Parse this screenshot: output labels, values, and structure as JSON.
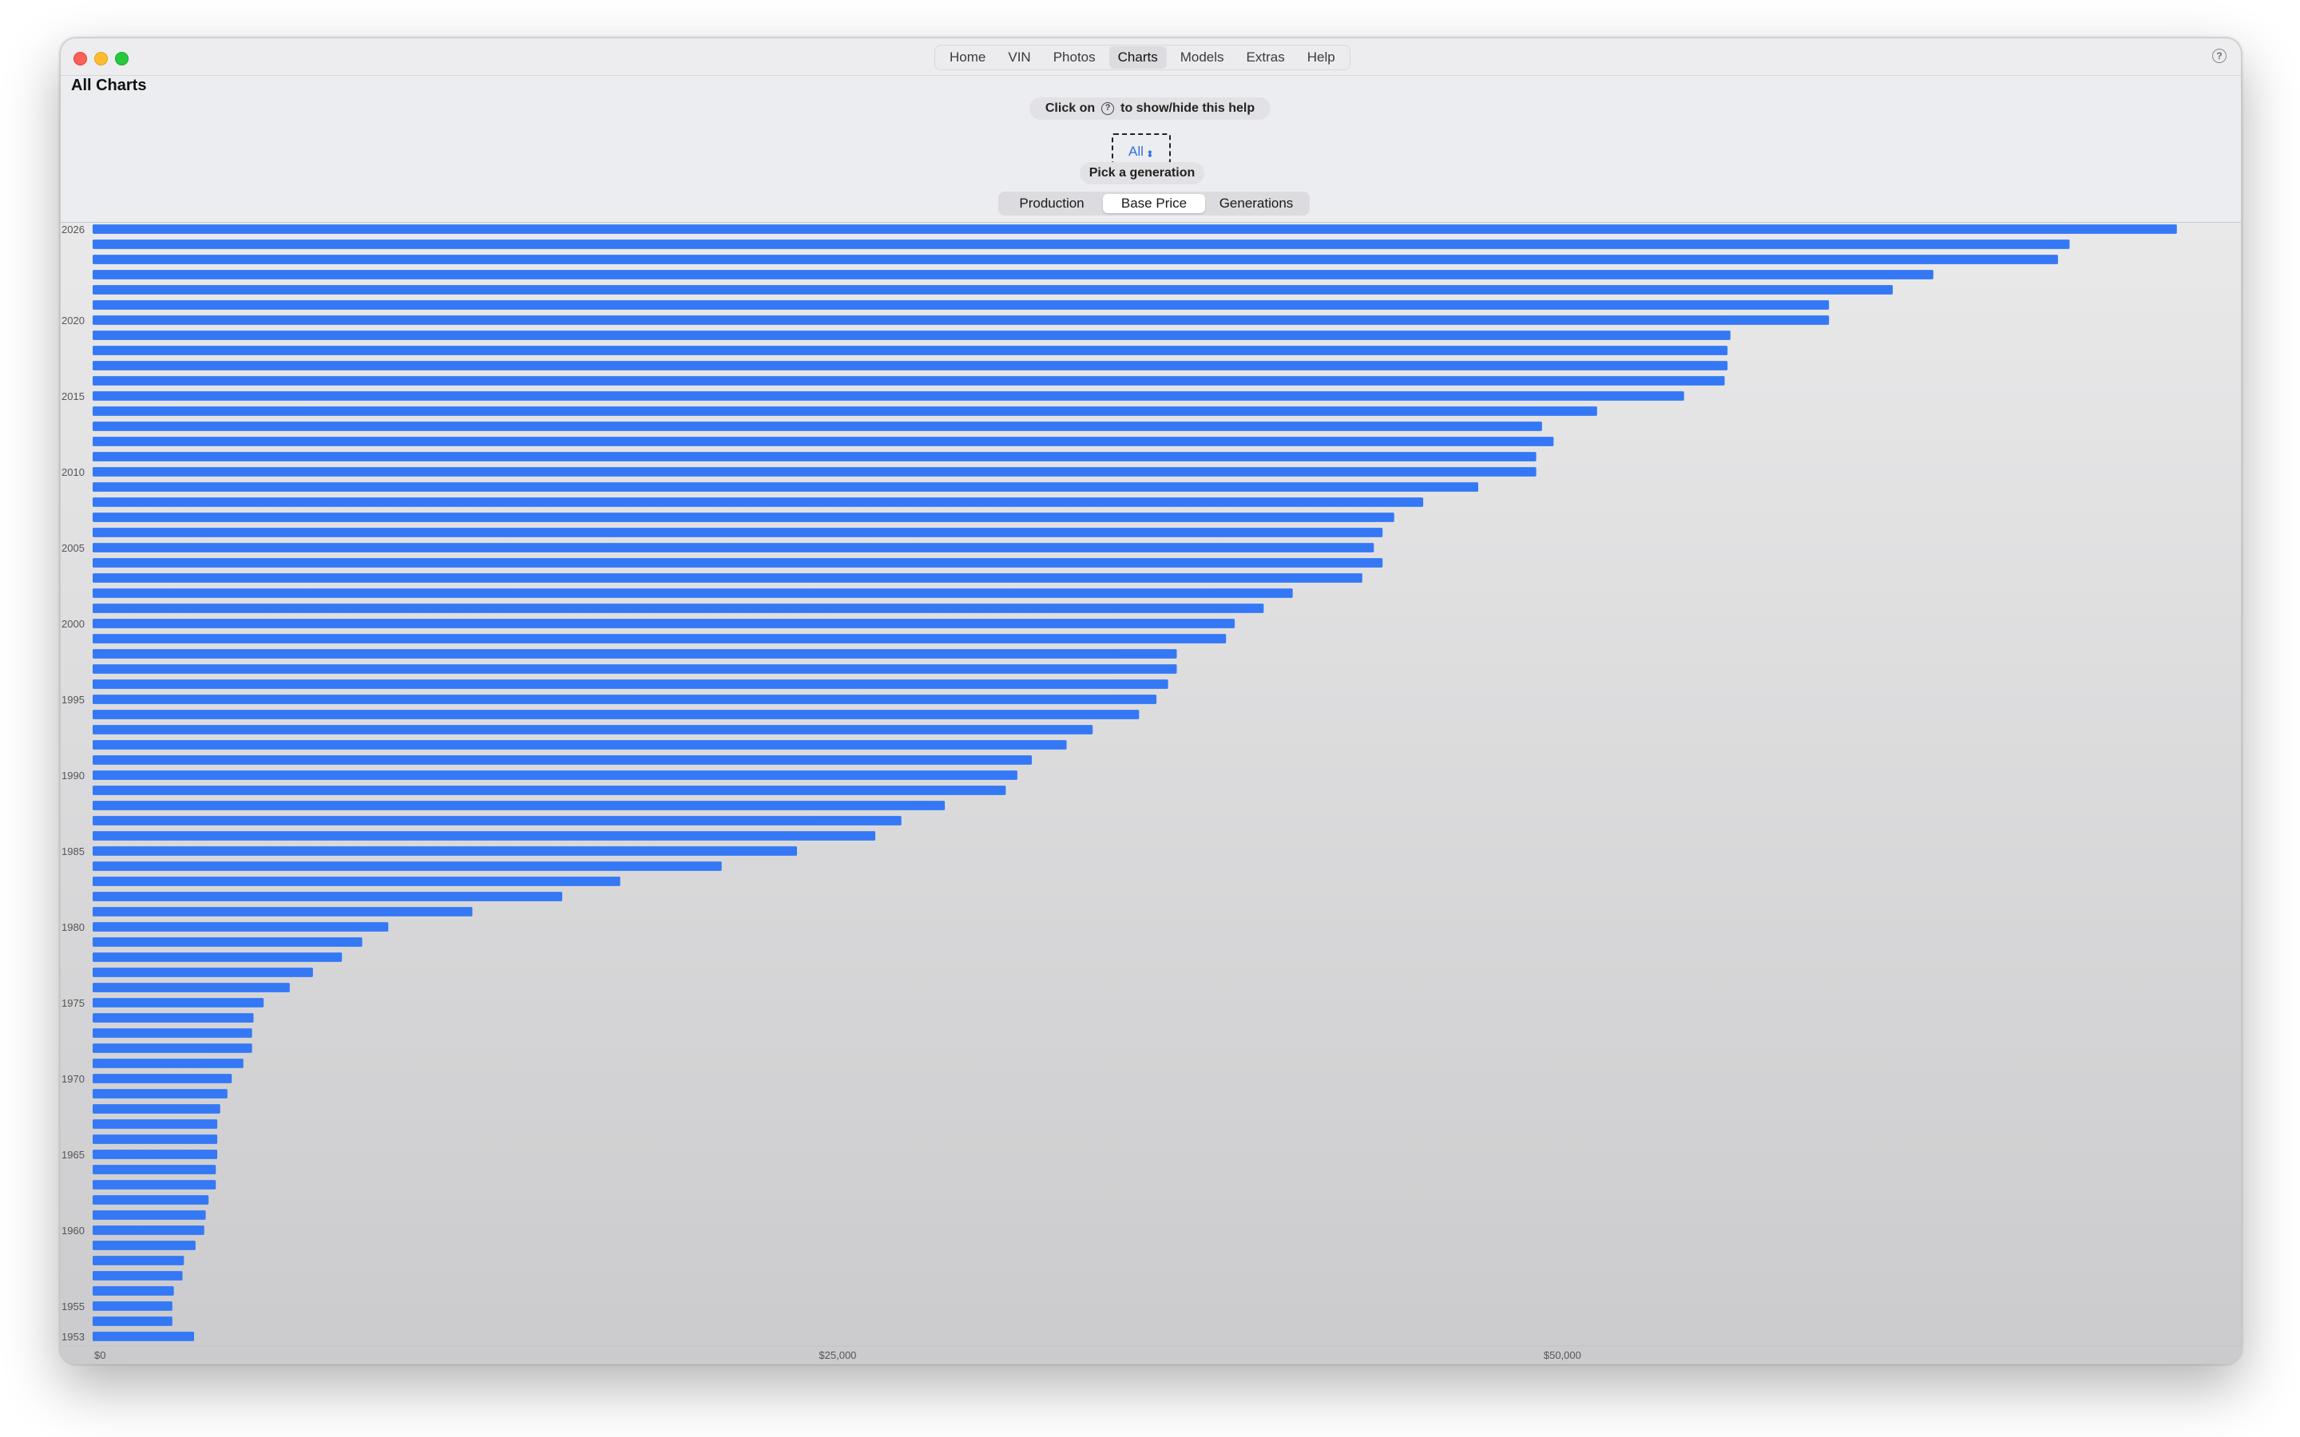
{
  "window": {
    "title": "All Charts"
  },
  "nav": {
    "tabs": [
      {
        "label": "Home"
      },
      {
        "label": "VIN"
      },
      {
        "label": "Photos"
      },
      {
        "label": "Charts",
        "active": true
      },
      {
        "label": "Models"
      },
      {
        "label": "Extras"
      },
      {
        "label": "Help"
      }
    ]
  },
  "help_banner": {
    "prefix": "Click on",
    "suffix": "to show/hide this help",
    "icon": "question-circle-icon"
  },
  "generation_picker": {
    "value": "All",
    "caption": "Pick a generation"
  },
  "segments": [
    {
      "label": "Production"
    },
    {
      "label": "Base Price",
      "active": true
    },
    {
      "label": "Generations"
    }
  ],
  "colors": {
    "bar": "#3478f6",
    "accent": "#2f6fe0"
  },
  "chart_data": {
    "type": "bar",
    "orientation": "horizontal",
    "xlim": [
      0,
      74000
    ],
    "x_ticks": [
      {
        "value": 0,
        "label": "$0"
      },
      {
        "value": 25000,
        "label": "$25,000"
      },
      {
        "value": 50000,
        "label": "$50,000"
      }
    ],
    "y_tick_labels": [
      "2026",
      "2020",
      "2015",
      "2010",
      "2005",
      "2000",
      "1995",
      "1990",
      "1985",
      "1980",
      "1975",
      "1970",
      "1965",
      "1960",
      "1955",
      "1953"
    ],
    "categories": [
      2026,
      2025,
      2024,
      2023,
      2022,
      2021,
      2020,
      2019,
      2018,
      2017,
      2016,
      2015,
      2014,
      2013,
      2012,
      2011,
      2010,
      2009,
      2008,
      2007,
      2006,
      2005,
      2004,
      2003,
      2002,
      2001,
      2000,
      1999,
      1998,
      1997,
      1996,
      1995,
      1994,
      1993,
      1992,
      1991,
      1990,
      1989,
      1988,
      1987,
      1986,
      1985,
      1984,
      1983,
      1982,
      1981,
      1980,
      1979,
      1978,
      1977,
      1976,
      1975,
      1974,
      1973,
      1972,
      1971,
      1970,
      1969,
      1968,
      1967,
      1966,
      1965,
      1964,
      1963,
      1962,
      1961,
      1960,
      1959,
      1958,
      1957,
      1956,
      1955,
      1954,
      1953
    ],
    "values": [
      71900,
      68200,
      67800,
      63500,
      62100,
      59900,
      59900,
      56500,
      56400,
      56400,
      56300,
      54900,
      51900,
      50000,
      50400,
      49800,
      49800,
      47800,
      45900,
      44900,
      44500,
      44200,
      44500,
      43800,
      41400,
      40400,
      39400,
      39100,
      37400,
      37400,
      37100,
      36700,
      36100,
      34500,
      33600,
      32400,
      31900,
      31500,
      29400,
      27900,
      27000,
      24300,
      21700,
      18200,
      16200,
      13100,
      10200,
      9300,
      8600,
      7600,
      6800,
      5900,
      5550,
      5500,
      5500,
      5200,
      4800,
      4650,
      4400,
      4300,
      4300,
      4300,
      4250,
      4250,
      4000,
      3900,
      3850,
      3550,
      3150,
      3100,
      2800,
      2750,
      2750,
      3500
    ]
  }
}
